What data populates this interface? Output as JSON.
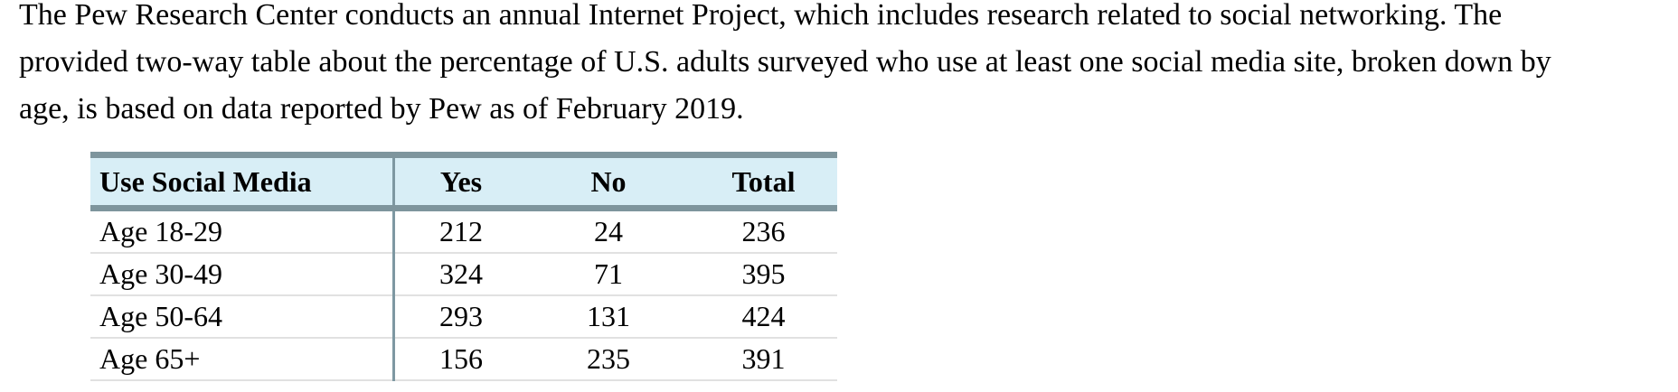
{
  "paragraph": {
    "lines": [
      "The Pew Research Center conducts an annual Internet Project, which includes research related to social networking. The",
      "provided two-way table about the percentage of U.S. adults surveyed who use at least one social media site, broken down by",
      "age, is based on data reported by Pew as of February 2019."
    ]
  },
  "table": {
    "headers": [
      "Use Social Media",
      "Yes",
      "No",
      "Total"
    ],
    "rows": [
      [
        "Age 18-29",
        "212",
        "24",
        "236"
      ],
      [
        "Age 30-49",
        "324",
        "71",
        "395"
      ],
      [
        "Age 50-64",
        "293",
        "131",
        "424"
      ],
      [
        "Age 65+",
        "156",
        "235",
        "391"
      ]
    ]
  },
  "colors": {
    "header_background": "#d8eef6",
    "header_border": "#7e959d",
    "column_divider": "#7e98a2",
    "row_separator": "#e1e1e1",
    "text": "#000000"
  }
}
